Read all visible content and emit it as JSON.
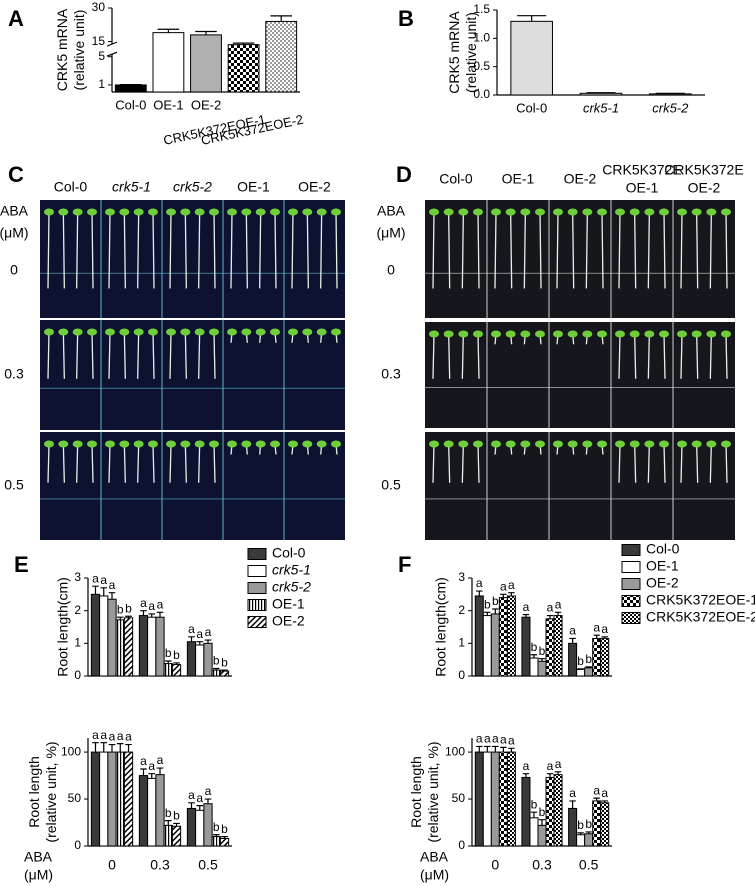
{
  "chart_data": [
    {
      "panel": "A",
      "type": "bar",
      "ylabel": [
        "CRK5 mRNA",
        "(relative unit)"
      ],
      "categories": [
        "Col-0",
        "OE-1",
        "OE-2",
        "CRK5K372EOE-1",
        "CRK5K372EOE-2"
      ],
      "values": [
        1,
        19,
        18,
        13,
        24
      ],
      "errors": [
        0.05,
        1.5,
        1.5,
        1,
        2.5
      ],
      "colors": [
        "#000000",
        "#ffffff",
        "#b0b0b0",
        "#ffffff",
        "#ffffff"
      ],
      "patterns": [
        "solid",
        "solid",
        "solid",
        "checker",
        "dots"
      ],
      "ylim": [
        0,
        30
      ],
      "yticks": [
        1,
        5,
        15,
        30
      ],
      "axis_break": [
        5,
        15
      ]
    },
    {
      "panel": "B",
      "type": "bar",
      "ylabel": [
        "CRK5 mRNA",
        "(relative unit)"
      ],
      "categories": [
        "Col-0",
        "crk5-1",
        "crk5-2"
      ],
      "values": [
        1.3,
        0.03,
        0.02
      ],
      "errors": [
        0.1,
        0.01,
        0.01
      ],
      "color": "#dddddd",
      "ylim": [
        0,
        1.5
      ],
      "yticks": [
        {
          "value": 0,
          "label": "0.0"
        },
        0.5,
        {
          "value": 1,
          "label": "1.0"
        },
        1.5
      ]
    },
    {
      "panel": "E",
      "type": "grouped_bar",
      "ylabel": [
        "Root length(cm)"
      ],
      "legend": "right",
      "ylim": [
        0,
        3
      ],
      "yticks": [
        0,
        1,
        2,
        3
      ],
      "series": [
        {
          "name": "Col-0",
          "color": "#3a3a3a",
          "pattern": "solid",
          "values": [
            2.5,
            1.85,
            1.05
          ],
          "errors": [
            0.25,
            0.15,
            0.15
          ],
          "letters": [
            "a",
            "a",
            "a"
          ]
        },
        {
          "name": "crk5-1",
          "color": "#ffffff",
          "pattern": "solid",
          "values": [
            2.45,
            1.8,
            0.95
          ],
          "errors": [
            0.25,
            0.1,
            0.1
          ],
          "letters": [
            "a",
            "a",
            "a"
          ]
        },
        {
          "name": "crk5-2",
          "color": "#9a9a9a",
          "pattern": "solid",
          "values": [
            2.35,
            1.8,
            1.0
          ],
          "errors": [
            0.2,
            0.15,
            0.1
          ],
          "letters": [
            "a",
            "a",
            "a"
          ]
        },
        {
          "name": "OE-1",
          "color": "#ffffff",
          "pattern": "vstripes",
          "values": [
            1.72,
            0.38,
            0.18
          ],
          "errors": [
            0.08,
            0.08,
            0.05
          ],
          "letters": [
            "b",
            "b",
            "b"
          ]
        },
        {
          "name": "OE-2",
          "color": "#ffffff",
          "pattern": "diagonal",
          "values": [
            1.78,
            0.35,
            0.15
          ],
          "errors": [
            0.05,
            0.05,
            0.03
          ],
          "letters": [
            "b",
            "b",
            "b"
          ]
        }
      ]
    },
    {
      "type": "grouped_bar",
      "ylabel": [
        "Root length",
        "(relative unit, %)"
      ],
      "categories": [
        "0",
        "0.3",
        "0.5"
      ],
      "xlabel": [
        "ABA",
        "(μM)"
      ],
      "ylim": [
        0,
        115
      ],
      "yticks": [
        0,
        50,
        100
      ],
      "series": [
        {
          "color": "#3a3a3a",
          "pattern": "solid",
          "values": [
            100,
            75,
            40
          ],
          "errors": [
            10,
            7,
            6
          ],
          "letters": [
            "a",
            "a",
            "a"
          ]
        },
        {
          "color": "#ffffff",
          "pattern": "solid",
          "values": [
            100,
            72,
            38
          ],
          "errors": [
            10,
            5,
            5
          ],
          "letters": [
            "a",
            "a",
            "a"
          ]
        },
        {
          "color": "#9a9a9a",
          "pattern": "solid",
          "values": [
            100,
            76,
            45
          ],
          "errors": [
            8,
            7,
            5
          ],
          "letters": [
            "a",
            "a",
            "a"
          ]
        },
        {
          "color": "#ffffff",
          "pattern": "vstripes",
          "values": [
            100,
            22,
            10
          ],
          "errors": [
            9,
            5,
            2
          ],
          "letters": [
            "a",
            "b",
            "b"
          ]
        },
        {
          "color": "#ffffff",
          "pattern": "diagonal",
          "values": [
            100,
            21,
            8
          ],
          "errors": [
            8,
            3,
            2
          ],
          "letters": [
            "a",
            "b",
            "b"
          ]
        }
      ]
    },
    {
      "panel": "F",
      "type": "grouped_bar",
      "ylabel": [
        "Root length(cm)"
      ],
      "legend": "right",
      "ylim": [
        0,
        3
      ],
      "yticks": [
        0,
        1,
        2,
        3
      ],
      "series": [
        {
          "name": "Col-0",
          "color": "#3a3a3a",
          "pattern": "solid",
          "values": [
            2.45,
            1.8,
            1.0
          ],
          "errors": [
            0.15,
            0.08,
            0.15
          ],
          "letters": [
            "a",
            "a",
            "a"
          ]
        },
        {
          "name": "OE-1",
          "color": "#ffffff",
          "pattern": "solid",
          "values": [
            1.85,
            0.55,
            0.2
          ],
          "errors": [
            0.1,
            0.1,
            0.02
          ],
          "letters": [
            "b",
            "b",
            "b"
          ]
        },
        {
          "name": "OE-2",
          "color": "#9a9a9a",
          "pattern": "solid",
          "values": [
            1.9,
            0.45,
            0.25
          ],
          "errors": [
            0.15,
            0.08,
            0.03
          ],
          "letters": [
            "b",
            "b",
            "b"
          ]
        },
        {
          "name": "CRK5K372EOE-1",
          "color": "#ffffff",
          "pattern": "checker",
          "values": [
            2.4,
            1.75,
            1.15
          ],
          "errors": [
            0.1,
            0.1,
            0.1
          ],
          "letters": [
            "a",
            "a",
            "a"
          ]
        },
        {
          "name": "CRK5K372EOE-2",
          "color": "#ffffff",
          "pattern": "checker-fine",
          "values": [
            2.45,
            1.85,
            1.15
          ],
          "errors": [
            0.1,
            0.1,
            0.05
          ],
          "letters": [
            "a",
            "a",
            "a"
          ]
        }
      ]
    },
    {
      "type": "grouped_bar",
      "ylabel": [
        "Root length",
        "(relative unit, %)"
      ],
      "categories": [
        "0",
        "0.3",
        "0.5"
      ],
      "xlabel": [
        "ABA",
        "(μM)"
      ],
      "ylim": [
        0,
        115
      ],
      "yticks": [
        0,
        50,
        100
      ],
      "series": [
        {
          "color": "#3a3a3a",
          "pattern": "solid",
          "values": [
            100,
            73,
            40
          ],
          "errors": [
            6,
            4,
            8
          ],
          "letters": [
            "a",
            "a",
            "a"
          ]
        },
        {
          "color": "#ffffff",
          "pattern": "solid",
          "values": [
            100,
            30,
            12
          ],
          "errors": [
            6,
            6,
            2
          ],
          "letters": [
            "a",
            "b",
            "b"
          ]
        },
        {
          "color": "#9a9a9a",
          "pattern": "solid",
          "values": [
            100,
            22,
            13
          ],
          "errors": [
            6,
            6,
            2
          ],
          "letters": [
            "a",
            "b",
            "b"
          ]
        },
        {
          "color": "#ffffff",
          "pattern": "checker",
          "values": [
            100,
            73,
            48
          ],
          "errors": [
            5,
            4,
            3
          ],
          "letters": [
            "a",
            "a",
            "a"
          ]
        },
        {
          "color": "#ffffff",
          "pattern": "checker-fine",
          "values": [
            100,
            76,
            46
          ],
          "errors": [
            4,
            3,
            2
          ],
          "letters": [
            "a",
            "a",
            "a"
          ]
        }
      ]
    }
  ],
  "photos": [
    {
      "panel": "C",
      "row_header": [
        "ABA",
        "(μM)"
      ],
      "rows": [
        "0",
        "0.3",
        "0.5"
      ],
      "columns": [
        [
          "Col-0"
        ],
        [
          "crk5-1"
        ],
        [
          "crk5-2"
        ],
        [
          "OE-1"
        ],
        [
          "OE-2"
        ]
      ]
    },
    {
      "panel": "D",
      "row_header": [
        "ABA",
        "(μM)"
      ],
      "rows": [
        "0",
        "0.3",
        "0.5"
      ],
      "columns": [
        [
          "Col-0"
        ],
        [
          "OE-1"
        ],
        [
          "OE-2"
        ],
        [
          "CRK5K372E",
          "OE-1"
        ],
        [
          "CRK5K372E",
          "OE-2"
        ]
      ]
    }
  ]
}
